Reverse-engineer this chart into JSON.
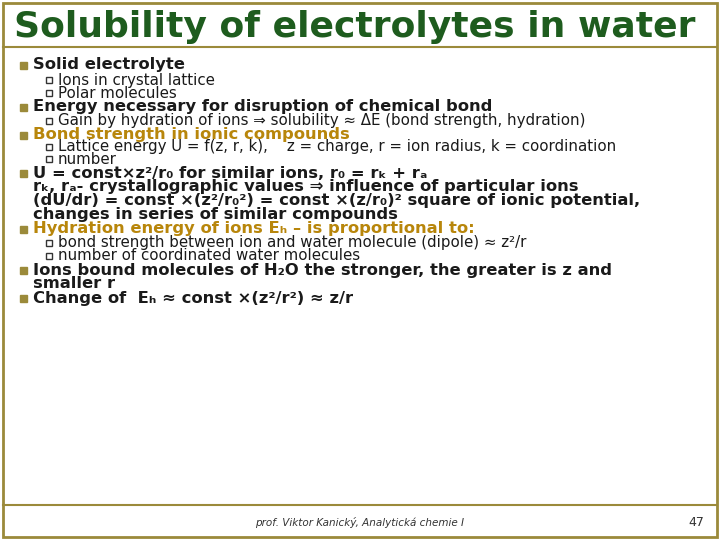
{
  "bg_color": "#ffffff",
  "border_color": "#9B8A3A",
  "title": "Solubility of electrolytes in water",
  "title_color": "#1E5C1E",
  "title_fontsize": 26,
  "bullet_color": "#9B8A3A",
  "text_color": "#1a1a1a",
  "orange_color": "#B8860B",
  "footer_text": "prof. Viktor Kanický, Analytická chemie I",
  "footer_page": "47"
}
